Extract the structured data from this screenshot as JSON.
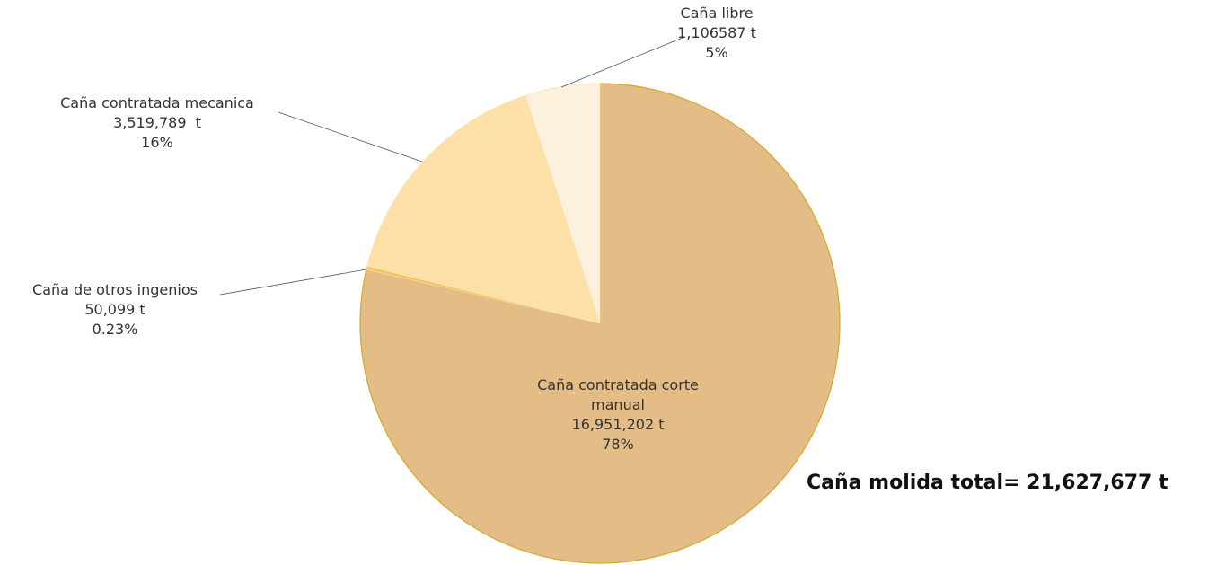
{
  "chart_data": {
    "type": "pie",
    "categories": [
      "Caña contratada corte manual",
      "Caña de otros ingenios",
      "Caña contratada mecanica",
      "Caña libre"
    ],
    "amount_labels": [
      "16,951,202 t",
      "50,099 t",
      "3,519,789  t",
      "1,106587 t"
    ],
    "values": [
      78,
      0.23,
      16,
      5
    ],
    "value_labels": [
      "78%",
      "0.23%",
      "16%",
      "5%"
    ],
    "colors": [
      "#e3bd85",
      "#f2c35a",
      "#fddfa8",
      "#fdf0dc"
    ],
    "annotation": "Caña molida total= 21,627,677 t"
  }
}
